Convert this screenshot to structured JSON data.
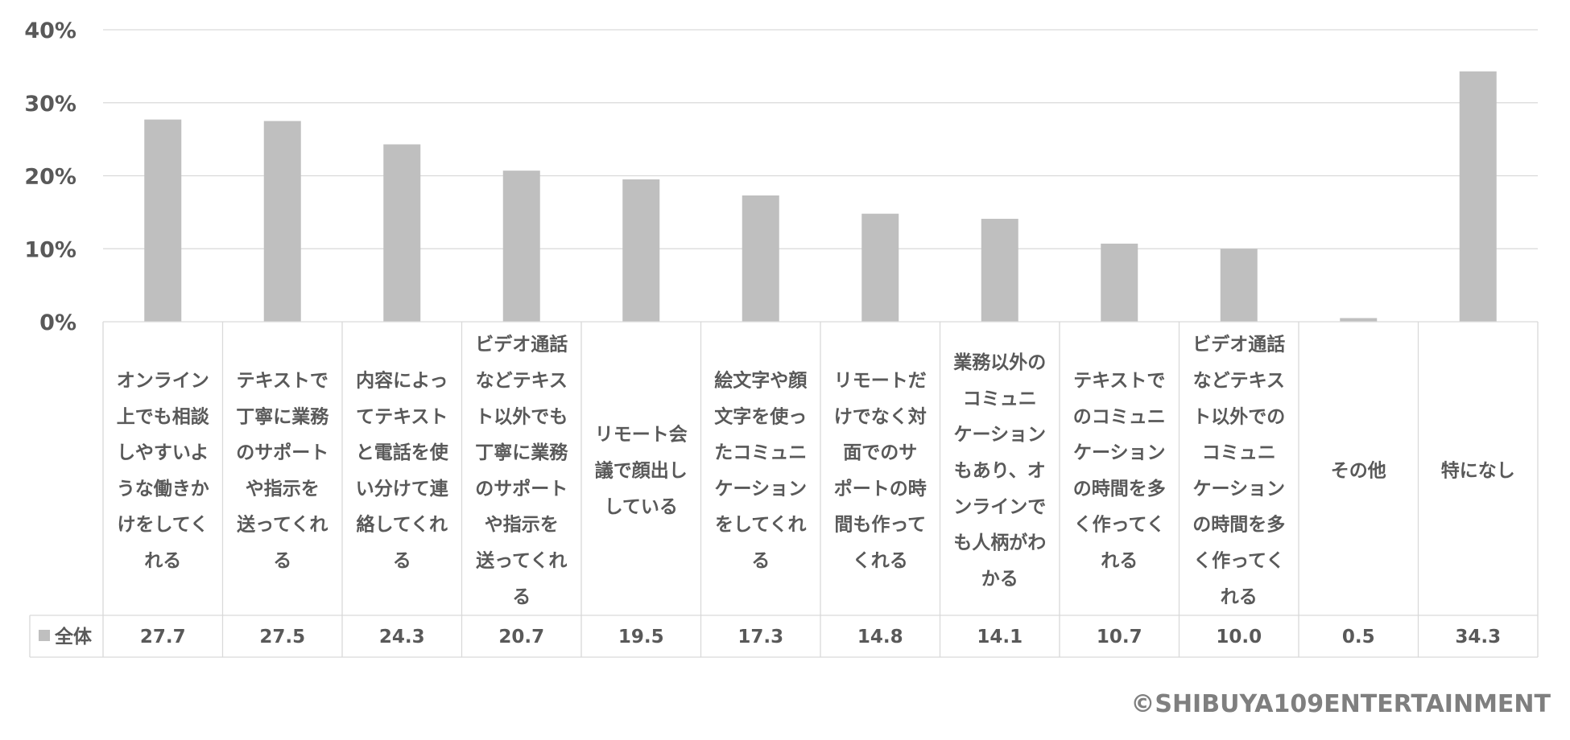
{
  "chart_data": {
    "type": "bar",
    "categories": [
      "オンライン上でも相談しやすいような働きかけをしてくれる",
      "テキストで丁寧に業務のサポートや指示を送ってくれる",
      "内容によってテキストと電話を使い分けて連絡してくれる",
      "ビデオ通話などテキスト以外でも丁寧に業務のサポートや指示を送ってくれる",
      "リモート会議で顔出ししている",
      "絵文字や顔文字を使ったコミュニケーションをしてくれる",
      "リモートだけでなく対面でのサポートの時間も作ってくれる",
      "業務以外のコミュニケーションもあり、オンラインでも人柄がわかる",
      "テキストでのコミュニケーションの時間を多く作ってくれる",
      "ビデオ通話などテキスト以外でのコミュニケーションの時間を多く作ってくれる",
      "その他",
      "特になし"
    ],
    "category_lines": [
      [
        "オンライン",
        "上でも相談",
        "しやすいよ",
        "うな働きか",
        "けをしてく",
        "れる"
      ],
      [
        "テキストで",
        "丁寧に業務",
        "のサポート",
        "や指示を",
        "送ってくれ",
        "る"
      ],
      [
        "内容によっ",
        "てテキスト",
        "と電話を使",
        "い分けて連",
        "絡してくれ",
        "る"
      ],
      [
        "ビデオ通話",
        "などテキス",
        "ト以外でも",
        "丁寧に業務",
        "のサポート",
        "や指示を",
        "送ってくれ",
        "る"
      ],
      [
        "リモート会",
        "議で顔出し",
        "している"
      ],
      [
        "絵文字や顔",
        "文字を使っ",
        "たコミュニ",
        "ケーション",
        "をしてくれ",
        "る"
      ],
      [
        "リモートだ",
        "けでなく対",
        "面でのサ",
        "ポートの時",
        "間も作って",
        "くれる"
      ],
      [
        "業務以外の",
        "コミュニ",
        "ケーション",
        "もあり、オ",
        "ンラインで",
        "も人柄がわ",
        "かる"
      ],
      [
        "テキストで",
        "のコミュニ",
        "ケーション",
        "の時間を多",
        "く作ってく",
        "れる"
      ],
      [
        "ビデオ通話",
        "などテキス",
        "ト以外での",
        "コミュニ",
        "ケーション",
        "の時間を多",
        "く作ってく",
        "れる"
      ],
      [
        "その他"
      ],
      [
        "特になし"
      ]
    ],
    "series": [
      {
        "name": "全体",
        "values": [
          27.7,
          27.5,
          24.3,
          20.7,
          19.5,
          17.3,
          14.8,
          14.1,
          10.7,
          10.0,
          0.5,
          34.3
        ],
        "value_labels": [
          "27.7",
          "27.5",
          "24.3",
          "20.7",
          "19.5",
          "17.3",
          "14.8",
          "14.1",
          "10.7",
          "10.0",
          "0.5",
          "34.3"
        ]
      }
    ],
    "ylim": [
      0,
      40
    ],
    "yticks": [
      0,
      10,
      20,
      30,
      40
    ],
    "ytick_labels": [
      "0%",
      "10%",
      "20%",
      "30%",
      "40%"
    ],
    "grid": true,
    "data_table": true,
    "title": "",
    "xlabel": "",
    "ylabel": ""
  },
  "colors": {
    "bar": "#bfbfbf",
    "grid": "#d9d9d9",
    "text": "#595959",
    "table_border": "#d9d9d9"
  },
  "copyright": "©SHIBUYA109ENTERTAINMENT"
}
